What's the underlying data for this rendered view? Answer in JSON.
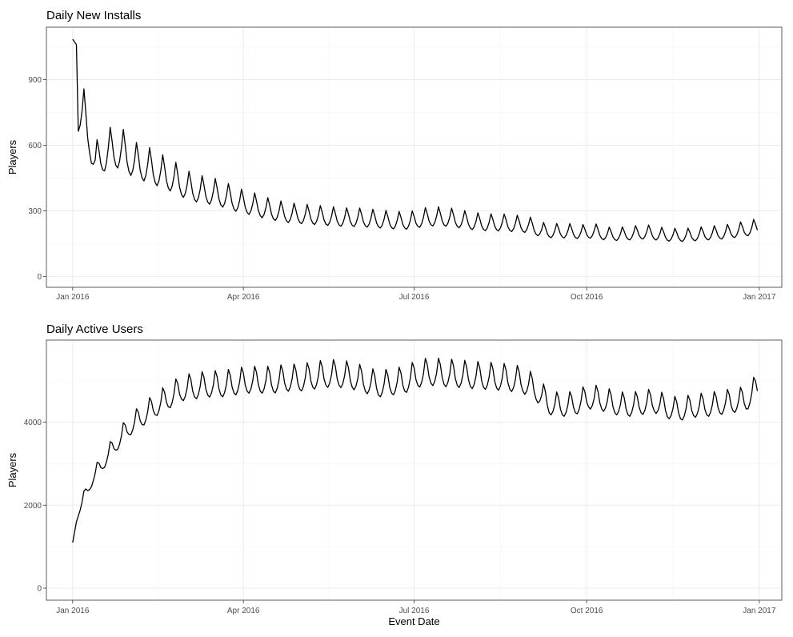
{
  "chart_data": [
    {
      "type": "line",
      "title": "Daily New Installs",
      "xlabel": "",
      "ylabel": "Players",
      "xlim": [
        "2015-12-18",
        "2017-01-13"
      ],
      "ylim": [
        -50,
        1140
      ],
      "x_ticks": [
        "2016-01-01",
        "2016-04-01",
        "2016-07-01",
        "2016-10-01",
        "2017-01-01"
      ],
      "x_tick_labels": [
        "Jan 2016",
        "Apr 2016",
        "Jul 2016",
        "Oct 2016",
        "Jan 2017"
      ],
      "y_ticks": [
        0,
        300,
        600,
        900
      ],
      "y_tick_labels": [
        "0",
        "300",
        "600",
        "900"
      ],
      "grid": true,
      "start_date": "2016-01-01",
      "end_date": "2016-12-31",
      "weekly_pattern": [
        1.0,
        0.88,
        0.82,
        0.8,
        0.85,
        0.95,
        1.1
      ],
      "trend_points": [
        [
          "2016-01-01",
          1085
        ],
        [
          "2016-01-03",
          1060
        ],
        [
          "2016-01-04",
          830
        ],
        [
          "2016-01-07",
          780
        ],
        [
          "2016-01-10",
          690
        ],
        [
          "2016-01-13",
          560
        ],
        [
          "2016-01-20",
          620
        ],
        [
          "2016-01-27",
          620
        ],
        [
          "2016-02-03",
          560
        ],
        [
          "2016-02-10",
          540
        ],
        [
          "2016-02-17",
          510
        ],
        [
          "2016-02-24",
          480
        ],
        [
          "2016-03-02",
          440
        ],
        [
          "2016-03-09",
          420
        ],
        [
          "2016-03-16",
          410
        ],
        [
          "2016-03-23",
          390
        ],
        [
          "2016-03-30",
          365
        ],
        [
          "2016-04-06",
          350
        ],
        [
          "2016-04-13",
          330
        ],
        [
          "2016-04-20",
          315
        ],
        [
          "2016-04-27",
          305
        ],
        [
          "2016-05-04",
          300
        ],
        [
          "2016-05-11",
          295
        ],
        [
          "2016-05-18",
          290
        ],
        [
          "2016-05-25",
          285
        ],
        [
          "2016-06-01",
          285
        ],
        [
          "2016-06-08",
          280
        ],
        [
          "2016-06-15",
          275
        ],
        [
          "2016-06-22",
          270
        ],
        [
          "2016-06-29",
          270
        ],
        [
          "2016-07-06",
          285
        ],
        [
          "2016-07-13",
          290
        ],
        [
          "2016-07-20",
          285
        ],
        [
          "2016-07-27",
          275
        ],
        [
          "2016-08-03",
          265
        ],
        [
          "2016-08-10",
          260
        ],
        [
          "2016-08-17",
          260
        ],
        [
          "2016-08-24",
          255
        ],
        [
          "2016-08-31",
          250
        ],
        [
          "2016-09-07",
          225
        ],
        [
          "2016-09-14",
          220
        ],
        [
          "2016-09-21",
          220
        ],
        [
          "2016-09-28",
          215
        ],
        [
          "2016-10-05",
          220
        ],
        [
          "2016-10-12",
          205
        ],
        [
          "2016-10-19",
          205
        ],
        [
          "2016-10-26",
          210
        ],
        [
          "2016-11-02",
          215
        ],
        [
          "2016-11-09",
          205
        ],
        [
          "2016-11-16",
          200
        ],
        [
          "2016-11-23",
          200
        ],
        [
          "2016-11-30",
          205
        ],
        [
          "2016-12-07",
          210
        ],
        [
          "2016-12-14",
          215
        ],
        [
          "2016-12-21",
          225
        ],
        [
          "2016-12-31",
          240
        ]
      ]
    },
    {
      "type": "line",
      "title": "Daily Active Users",
      "xlabel": "Event Date",
      "ylabel": "Players",
      "xlim": [
        "2015-12-18",
        "2017-01-13"
      ],
      "ylim": [
        -290,
        5980
      ],
      "x_ticks": [
        "2016-01-01",
        "2016-04-01",
        "2016-07-01",
        "2016-10-01",
        "2017-01-01"
      ],
      "x_tick_labels": [
        "Jan 2016",
        "Apr 2016",
        "Jul 2016",
        "Oct 2016",
        "Jan 2017"
      ],
      "y_ticks": [
        0,
        2000,
        4000
      ],
      "y_tick_labels": [
        "0",
        "2000",
        "4000"
      ],
      "grid": true,
      "start_date": "2016-01-01",
      "end_date": "2016-12-31",
      "weekly_pattern": [
        1.04,
        0.98,
        0.95,
        0.94,
        0.96,
        1.0,
        1.07
      ],
      "trend_points": [
        [
          "2016-01-01",
          1100
        ],
        [
          "2016-01-04",
          1850
        ],
        [
          "2016-01-08",
          2300
        ],
        [
          "2016-01-12",
          2700
        ],
        [
          "2016-01-18",
          3100
        ],
        [
          "2016-01-24",
          3500
        ],
        [
          "2016-01-31",
          3900
        ],
        [
          "2016-02-07",
          4150
        ],
        [
          "2016-02-14",
          4400
        ],
        [
          "2016-02-21",
          4600
        ],
        [
          "2016-02-28",
          4800
        ],
        [
          "2016-03-06",
          4850
        ],
        [
          "2016-03-13",
          4900
        ],
        [
          "2016-03-20",
          4900
        ],
        [
          "2016-03-27",
          4950
        ],
        [
          "2016-04-03",
          5000
        ],
        [
          "2016-04-10",
          5000
        ],
        [
          "2016-04-17",
          5000
        ],
        [
          "2016-04-24",
          5050
        ],
        [
          "2016-05-01",
          5050
        ],
        [
          "2016-05-08",
          5100
        ],
        [
          "2016-05-15",
          5150
        ],
        [
          "2016-05-22",
          5150
        ],
        [
          "2016-05-29",
          5100
        ],
        [
          "2016-06-05",
          5000
        ],
        [
          "2016-06-12",
          4900
        ],
        [
          "2016-06-19",
          4950
        ],
        [
          "2016-06-26",
          5000
        ],
        [
          "2016-07-03",
          5150
        ],
        [
          "2016-07-10",
          5200
        ],
        [
          "2016-07-17",
          5170
        ],
        [
          "2016-07-24",
          5150
        ],
        [
          "2016-07-31",
          5120
        ],
        [
          "2016-08-07",
          5100
        ],
        [
          "2016-08-14",
          5080
        ],
        [
          "2016-08-21",
          5050
        ],
        [
          "2016-08-28",
          5000
        ],
        [
          "2016-09-04",
          4800
        ],
        [
          "2016-09-11",
          4450
        ],
        [
          "2016-09-18",
          4400
        ],
        [
          "2016-09-25",
          4450
        ],
        [
          "2016-10-02",
          4600
        ],
        [
          "2016-10-09",
          4550
        ],
        [
          "2016-10-16",
          4450
        ],
        [
          "2016-10-23",
          4400
        ],
        [
          "2016-10-30",
          4450
        ],
        [
          "2016-11-06",
          4500
        ],
        [
          "2016-11-13",
          4350
        ],
        [
          "2016-11-20",
          4300
        ],
        [
          "2016-11-27",
          4380
        ],
        [
          "2016-12-04",
          4400
        ],
        [
          "2016-12-11",
          4450
        ],
        [
          "2016-12-18",
          4500
        ],
        [
          "2016-12-25",
          4550
        ],
        [
          "2016-12-31",
          4850
        ]
      ]
    }
  ]
}
